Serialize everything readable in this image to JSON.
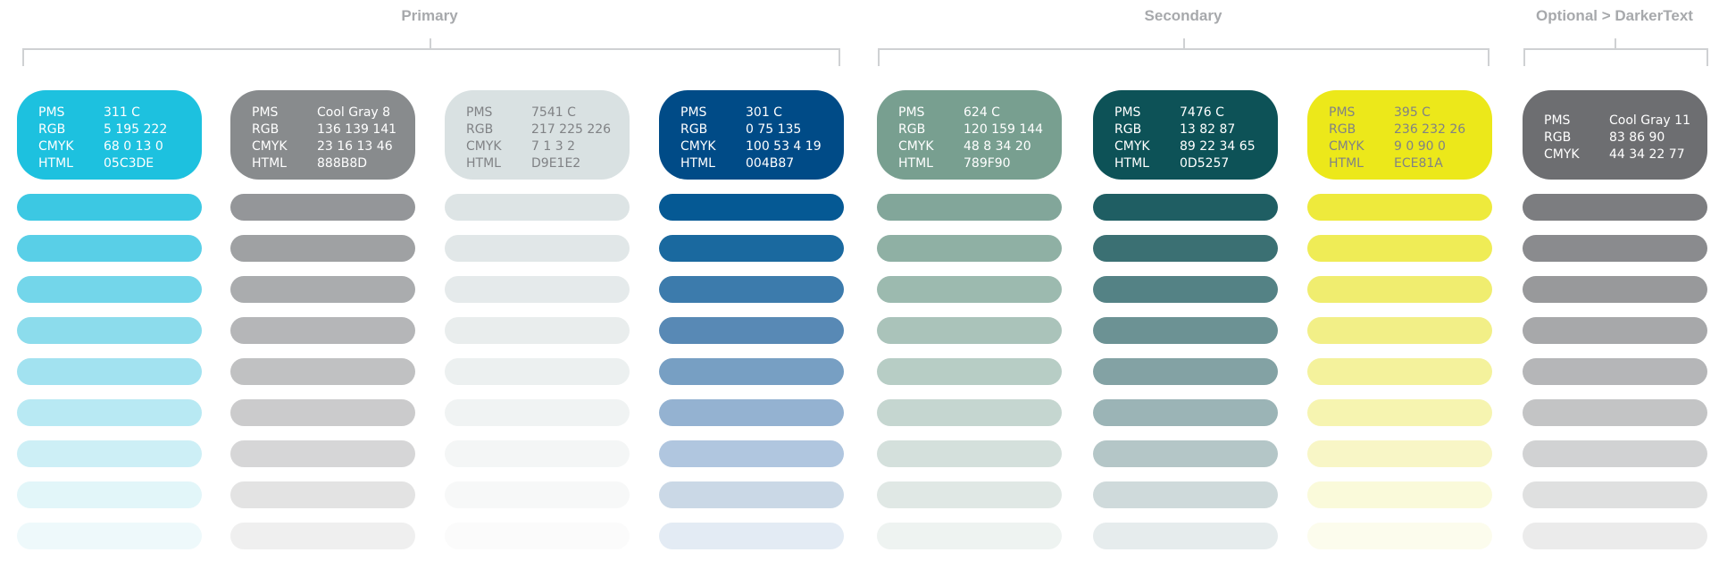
{
  "groups": [
    {
      "label": "Primary"
    },
    {
      "label": "Secondary"
    },
    {
      "label": "Optional > DarkerText"
    }
  ],
  "swatches": [
    {
      "name": "311 C",
      "text_color": "#ffffff",
      "rows": [
        {
          "k": "PMS",
          "v": "311 C"
        },
        {
          "k": "RGB",
          "v": "5  195  222"
        },
        {
          "k": "CMYK",
          "v": "68  0  13  0"
        },
        {
          "k": "HTML",
          "v": "05C3DE"
        }
      ],
      "tints": [
        "#1dc1df",
        "#3cc8e3",
        "#59cfe7",
        "#73d6ea",
        "#8cdcec",
        "#a2e2f0",
        "#b8e9f3",
        "#cdeff6",
        "#e2f6f9",
        "#eef9fb"
      ]
    },
    {
      "name": "Cool Gray 8",
      "text_color": "#ffffff",
      "rows": [
        {
          "k": "PMS",
          "v": "Cool Gray 8"
        },
        {
          "k": "RGB",
          "v": "136  139  141"
        },
        {
          "k": "CMYK",
          "v": "23  16  13  46"
        },
        {
          "k": "HTML",
          "v": "888B8D"
        }
      ],
      "tints": [
        "#888b8d",
        "#949699",
        "#9fa1a3",
        "#aaacae",
        "#b5b6b8",
        "#c0c1c2",
        "#cbcbcc",
        "#d6d6d7",
        "#e3e3e3",
        "#efefef"
      ]
    },
    {
      "name": "7541 C",
      "text_color": "#808285",
      "rows": [
        {
          "k": "PMS",
          "v": "7541 C"
        },
        {
          "k": "RGB",
          "v": "217  225  226"
        },
        {
          "k": "CMYK",
          "v": "7  1  3  2"
        },
        {
          "k": "HTML",
          "v": "D9E1E2"
        }
      ],
      "tints": [
        "#d9e1e2",
        "#dde4e5",
        "#e1e7e8",
        "#e5eaeb",
        "#e9eded",
        "#ecf0f0",
        "#f0f3f3",
        "#f4f6f6",
        "#f7f8f8",
        "#fbfbfb"
      ]
    },
    {
      "name": "301 C",
      "text_color": "#ffffff",
      "rows": [
        {
          "k": "PMS",
          "v": "301 C"
        },
        {
          "k": "RGB",
          "v": "0  75  135"
        },
        {
          "k": "CMYK",
          "v": "100  53  4  19"
        },
        {
          "k": "HTML",
          "v": "004B87"
        }
      ],
      "tints": [
        "#004b87",
        "#055994",
        "#1a699f",
        "#3c7bac",
        "#5889b5",
        "#779fc3",
        "#94b2d1",
        "#b0c6df",
        "#cad8e6",
        "#e3ebf4"
      ]
    },
    {
      "name": "624 C",
      "text_color": "#ffffff",
      "rows": [
        {
          "k": "PMS",
          "v": "624 C"
        },
        {
          "k": "RGB",
          "v": "120  159  144"
        },
        {
          "k": "CMYK",
          "v": "48  8  34  20"
        },
        {
          "k": "HTML",
          "v": "789F90"
        }
      ],
      "tints": [
        "#789f90",
        "#82a69a",
        "#8fb0a4",
        "#9cbaaf",
        "#aac3ba",
        "#b7cdc5",
        "#c5d6d0",
        "#d4e0dc",
        "#e0e8e5",
        "#eef3f1"
      ]
    },
    {
      "name": "7476 C",
      "text_color": "#ffffff",
      "rows": [
        {
          "k": "PMS",
          "v": "7476 C"
        },
        {
          "k": "RGB",
          "v": "13  82  87"
        },
        {
          "k": "CMYK",
          "v": "89  22  34  65"
        },
        {
          "k": "HTML",
          "v": "0D5257"
        }
      ],
      "tints": [
        "#0d5257",
        "#1f5e63",
        "#3b7073",
        "#548285",
        "#6c9294",
        "#83a2a4",
        "#9bb4b6",
        "#b4c6c7",
        "#cfdadb",
        "#e6eced"
      ]
    },
    {
      "name": "395 C",
      "text_color": "#808285",
      "rows": [
        {
          "k": "PMS",
          "v": "395 C"
        },
        {
          "k": "RGB",
          "v": "236  232  26"
        },
        {
          "k": "CMYK",
          "v": "9  0  90  0"
        },
        {
          "k": "HTML",
          "v": "ECE81A"
        }
      ],
      "tints": [
        "#ece81a",
        "#eeea3c",
        "#efec56",
        "#f0ed6f",
        "#f2ef87",
        "#f4f29c",
        "#f6f4b0",
        "#f8f6c6",
        "#fafada",
        "#fcfced"
      ]
    },
    {
      "name": "Cool Gray 11",
      "text_color": "#ffffff",
      "rows": [
        {
          "k": "PMS",
          "v": "Cool Gray 11"
        },
        {
          "k": "RGB",
          "v": "83  86  90"
        },
        {
          "k": "CMYK",
          "v": "44  34  22  77"
        }
      ],
      "tints": [
        "#6d6e71",
        "#7c7d80",
        "#8a8b8e",
        "#98999b",
        "#a7a8aa",
        "#b5b6b8",
        "#c3c4c5",
        "#d1d2d3",
        "#dfe0e0",
        "#ebebeb"
      ]
    }
  ]
}
